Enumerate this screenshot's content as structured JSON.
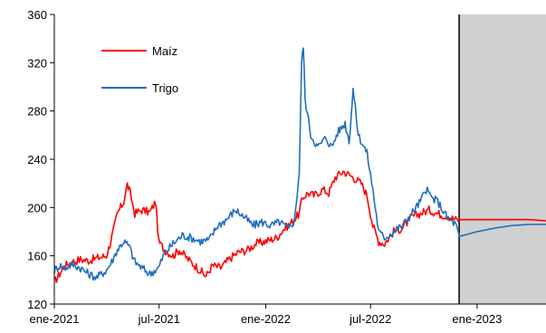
{
  "chart_data": {
    "type": "line",
    "title": "",
    "xlabel": "",
    "ylabel": "",
    "ylim": [
      120,
      360
    ],
    "yticks": [
      "120",
      "160",
      "200",
      "240",
      "280",
      "320",
      "360"
    ],
    "xlim": [
      "2021-01-01",
      "2023-04-30"
    ],
    "xticks": [
      {
        "label": "ene-2021",
        "date": "2021-01-01"
      },
      {
        "label": "jul-2021",
        "date": "2021-07-01"
      },
      {
        "label": "ene-2022",
        "date": "2022-01-01"
      },
      {
        "label": "jul-2022",
        "date": "2022-07-01"
      },
      {
        "label": "ene-2023",
        "date": "2023-01-01"
      }
    ],
    "grid": false,
    "legend_position": "top-left",
    "projection_start": "2022-12-01",
    "projection_shading_color": "#d0d0d0",
    "series": [
      {
        "name": "Maíz",
        "color": "#ff0000",
        "points": [
          [
            "2021-01-01",
            138
          ],
          [
            "2021-01-10",
            145
          ],
          [
            "2021-01-20",
            152
          ],
          [
            "2021-02-01",
            155
          ],
          [
            "2021-02-15",
            157
          ],
          [
            "2021-03-01",
            156
          ],
          [
            "2021-03-15",
            158
          ],
          [
            "2021-04-01",
            160
          ],
          [
            "2021-04-10",
            175
          ],
          [
            "2021-04-20",
            195
          ],
          [
            "2021-05-01",
            205
          ],
          [
            "2021-05-07",
            219
          ],
          [
            "2021-05-12",
            212
          ],
          [
            "2021-05-20",
            195
          ],
          [
            "2021-06-01",
            198
          ],
          [
            "2021-06-15",
            196
          ],
          [
            "2021-06-25",
            205
          ],
          [
            "2021-06-30",
            172
          ],
          [
            "2021-07-10",
            165
          ],
          [
            "2021-07-25",
            160
          ],
          [
            "2021-08-05",
            165
          ],
          [
            "2021-08-20",
            157
          ],
          [
            "2021-09-05",
            150
          ],
          [
            "2021-09-20",
            143
          ],
          [
            "2021-10-01",
            152
          ],
          [
            "2021-10-15",
            150
          ],
          [
            "2021-11-01",
            158
          ],
          [
            "2021-11-15",
            163
          ],
          [
            "2021-12-01",
            165
          ],
          [
            "2021-12-15",
            170
          ],
          [
            "2022-01-01",
            172
          ],
          [
            "2022-01-20",
            175
          ],
          [
            "2022-02-01",
            182
          ],
          [
            "2022-02-15",
            188
          ],
          [
            "2022-02-28",
            195
          ],
          [
            "2022-03-05",
            208
          ],
          [
            "2022-03-15",
            212
          ],
          [
            "2022-03-25",
            210
          ],
          [
            "2022-04-10",
            215
          ],
          [
            "2022-04-20",
            212
          ],
          [
            "2022-05-01",
            225
          ],
          [
            "2022-05-15",
            230
          ],
          [
            "2022-06-01",
            225
          ],
          [
            "2022-06-15",
            220
          ],
          [
            "2022-06-25",
            210
          ],
          [
            "2022-07-05",
            185
          ],
          [
            "2022-07-15",
            172
          ],
          [
            "2022-07-25",
            170
          ],
          [
            "2022-08-10",
            180
          ],
          [
            "2022-08-25",
            183
          ],
          [
            "2022-09-10",
            192
          ],
          [
            "2022-09-25",
            195
          ],
          [
            "2022-10-10",
            198
          ],
          [
            "2022-10-25",
            195
          ],
          [
            "2022-11-10",
            193
          ],
          [
            "2022-11-25",
            190
          ],
          [
            "2022-12-01",
            190
          ],
          [
            "2023-01-01",
            190
          ],
          [
            "2023-02-01",
            190
          ],
          [
            "2023-03-01",
            190
          ],
          [
            "2023-04-01",
            190
          ],
          [
            "2023-04-30",
            189
          ]
        ]
      },
      {
        "name": "Trigo",
        "color": "#1f6fbf",
        "points": [
          [
            "2021-01-01",
            148
          ],
          [
            "2021-01-10",
            152
          ],
          [
            "2021-01-20",
            150
          ],
          [
            "2021-02-01",
            153
          ],
          [
            "2021-02-15",
            150
          ],
          [
            "2021-03-01",
            145
          ],
          [
            "2021-03-15",
            142
          ],
          [
            "2021-04-01",
            148
          ],
          [
            "2021-04-10",
            155
          ],
          [
            "2021-04-20",
            165
          ],
          [
            "2021-05-01",
            172
          ],
          [
            "2021-05-10",
            168
          ],
          [
            "2021-05-20",
            155
          ],
          [
            "2021-06-01",
            150
          ],
          [
            "2021-06-15",
            145
          ],
          [
            "2021-06-30",
            150
          ],
          [
            "2021-07-10",
            162
          ],
          [
            "2021-07-25",
            170
          ],
          [
            "2021-08-10",
            177
          ],
          [
            "2021-08-25",
            175
          ],
          [
            "2021-09-10",
            172
          ],
          [
            "2021-09-25",
            173
          ],
          [
            "2021-10-10",
            185
          ],
          [
            "2021-10-25",
            190
          ],
          [
            "2021-11-10",
            198
          ],
          [
            "2021-11-25",
            192
          ],
          [
            "2021-12-10",
            185
          ],
          [
            "2021-12-25",
            188
          ],
          [
            "2022-01-10",
            185
          ],
          [
            "2022-01-25",
            188
          ],
          [
            "2022-02-10",
            182
          ],
          [
            "2022-02-20",
            190
          ],
          [
            "2022-02-28",
            230
          ],
          [
            "2022-03-04",
            320
          ],
          [
            "2022-03-07",
            334
          ],
          [
            "2022-03-10",
            290
          ],
          [
            "2022-03-20",
            260
          ],
          [
            "2022-04-01",
            250
          ],
          [
            "2022-04-15",
            258
          ],
          [
            "2022-04-25",
            250
          ],
          [
            "2022-05-05",
            262
          ],
          [
            "2022-05-18",
            270
          ],
          [
            "2022-05-25",
            255
          ],
          [
            "2022-06-01",
            298
          ],
          [
            "2022-06-10",
            260
          ],
          [
            "2022-06-25",
            245
          ],
          [
            "2022-07-05",
            215
          ],
          [
            "2022-07-15",
            180
          ],
          [
            "2022-07-25",
            175
          ],
          [
            "2022-08-10",
            180
          ],
          [
            "2022-08-25",
            185
          ],
          [
            "2022-09-10",
            195
          ],
          [
            "2022-09-25",
            205
          ],
          [
            "2022-10-05",
            215
          ],
          [
            "2022-10-15",
            208
          ],
          [
            "2022-10-25",
            205
          ],
          [
            "2022-11-10",
            192
          ],
          [
            "2022-11-25",
            186
          ],
          [
            "2022-12-01",
            176
          ],
          [
            "2023-01-01",
            180
          ],
          [
            "2023-02-01",
            183
          ],
          [
            "2023-03-01",
            185
          ],
          [
            "2023-04-01",
            186
          ],
          [
            "2023-04-30",
            186
          ]
        ]
      }
    ]
  }
}
